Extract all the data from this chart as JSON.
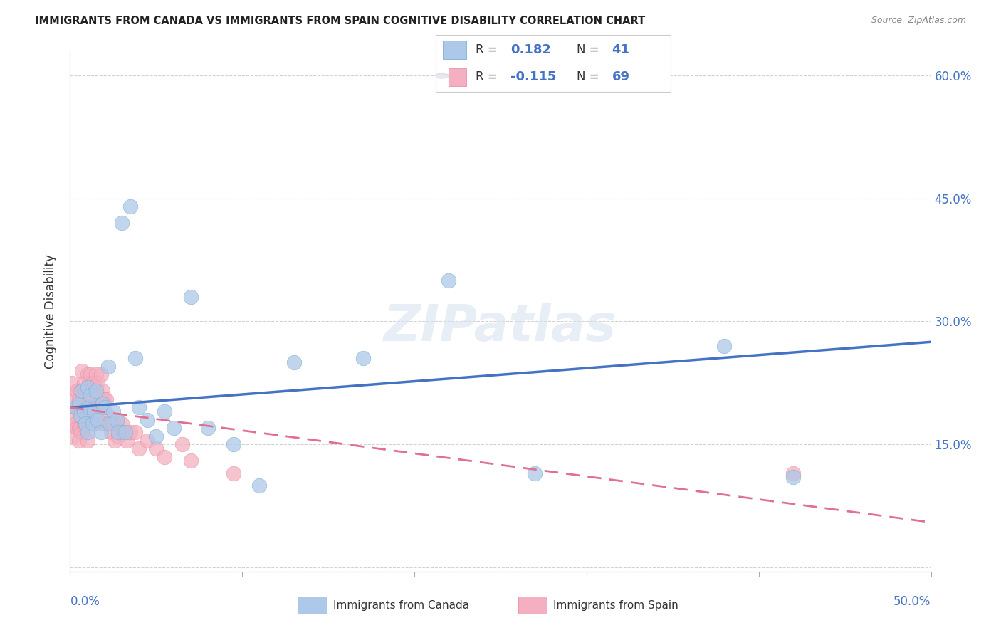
{
  "title": "IMMIGRANTS FROM CANADA VS IMMIGRANTS FROM SPAIN COGNITIVE DISABILITY CORRELATION CHART",
  "source": "Source: ZipAtlas.com",
  "ylabel": "Cognitive Disability",
  "xmin": 0.0,
  "xmax": 0.5,
  "ymin": -0.005,
  "ymax": 0.63,
  "canada_R": 0.182,
  "canada_N": 41,
  "spain_R": -0.115,
  "spain_N": 69,
  "canada_color": "#adc8e8",
  "canada_edge_color": "#7aafd4",
  "spain_color": "#f4b0c0",
  "spain_edge_color": "#e890a8",
  "canada_line_color": "#4472c4",
  "spain_line_color": "#e07090",
  "watermark_color": "#d8e4f0",
  "canada_line_y0": 0.195,
  "canada_line_y1": 0.275,
  "spain_line_y0": 0.195,
  "spain_line_y1": 0.055,
  "canada_x": [
    0.003,
    0.005,
    0.006,
    0.007,
    0.008,
    0.009,
    0.01,
    0.01,
    0.011,
    0.012,
    0.013,
    0.014,
    0.015,
    0.016,
    0.018,
    0.019,
    0.02,
    0.022,
    0.023,
    0.025,
    0.027,
    0.028,
    0.03,
    0.032,
    0.035,
    0.038,
    0.04,
    0.045,
    0.05,
    0.055,
    0.06,
    0.07,
    0.08,
    0.095,
    0.11,
    0.13,
    0.17,
    0.22,
    0.27,
    0.38,
    0.42
  ],
  "canada_y": [
    0.195,
    0.2,
    0.185,
    0.215,
    0.19,
    0.175,
    0.22,
    0.165,
    0.195,
    0.21,
    0.175,
    0.19,
    0.215,
    0.18,
    0.165,
    0.2,
    0.195,
    0.245,
    0.175,
    0.19,
    0.18,
    0.165,
    0.42,
    0.165,
    0.44,
    0.255,
    0.195,
    0.18,
    0.16,
    0.19,
    0.17,
    0.33,
    0.17,
    0.15,
    0.1,
    0.25,
    0.255,
    0.35,
    0.115,
    0.27,
    0.11
  ],
  "spain_x": [
    0.001,
    0.002,
    0.002,
    0.003,
    0.003,
    0.003,
    0.004,
    0.004,
    0.004,
    0.005,
    0.005,
    0.005,
    0.005,
    0.006,
    0.006,
    0.006,
    0.007,
    0.007,
    0.007,
    0.007,
    0.008,
    0.008,
    0.008,
    0.009,
    0.009,
    0.009,
    0.01,
    0.01,
    0.01,
    0.01,
    0.011,
    0.011,
    0.012,
    0.012,
    0.013,
    0.013,
    0.014,
    0.014,
    0.015,
    0.015,
    0.016,
    0.016,
    0.017,
    0.018,
    0.018,
    0.019,
    0.02,
    0.02,
    0.021,
    0.022,
    0.023,
    0.024,
    0.025,
    0.026,
    0.027,
    0.028,
    0.03,
    0.031,
    0.033,
    0.035,
    0.038,
    0.04,
    0.045,
    0.05,
    0.055,
    0.065,
    0.07,
    0.095,
    0.42
  ],
  "spain_y": [
    0.225,
    0.185,
    0.16,
    0.21,
    0.195,
    0.175,
    0.215,
    0.195,
    0.17,
    0.205,
    0.19,
    0.17,
    0.155,
    0.215,
    0.195,
    0.17,
    0.24,
    0.215,
    0.195,
    0.165,
    0.225,
    0.2,
    0.175,
    0.215,
    0.195,
    0.17,
    0.235,
    0.21,
    0.185,
    0.155,
    0.225,
    0.195,
    0.235,
    0.205,
    0.225,
    0.195,
    0.225,
    0.195,
    0.235,
    0.21,
    0.225,
    0.195,
    0.175,
    0.235,
    0.205,
    0.215,
    0.205,
    0.175,
    0.205,
    0.185,
    0.175,
    0.165,
    0.175,
    0.155,
    0.175,
    0.16,
    0.175,
    0.165,
    0.155,
    0.165,
    0.165,
    0.145,
    0.155,
    0.145,
    0.135,
    0.15,
    0.13,
    0.115,
    0.115
  ]
}
